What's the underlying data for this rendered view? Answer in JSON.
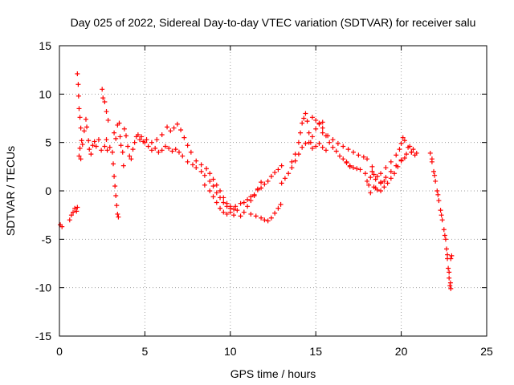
{
  "chart_data": {
    "type": "scatter",
    "title": "Day 025 of 2022, Sidereal Day-to-day VTEC variation (SDTVAR) for receiver salu",
    "xlabel": "GPS time / hours",
    "ylabel": "SDTVAR / TECUs",
    "xlim": [
      0,
      25
    ],
    "ylim": [
      -15,
      15
    ],
    "xticks": [
      0,
      5,
      10,
      15,
      20,
      25
    ],
    "yticks": [
      -15,
      -10,
      -5,
      0,
      5,
      10,
      15
    ],
    "grid": true,
    "legend": "none",
    "marker": "+",
    "series": [
      {
        "name": "SDTVAR",
        "color": "#ff0000",
        "points": [
          [
            0.05,
            -3.5
          ],
          [
            0.15,
            -3.7
          ],
          [
            0.6,
            -3.0
          ],
          [
            0.7,
            -2.5
          ],
          [
            0.8,
            -2.2
          ],
          [
            0.9,
            -1.8
          ],
          [
            1.0,
            -2.1
          ],
          [
            1.05,
            -1.7
          ],
          [
            1.05,
            12.1
          ],
          [
            1.1,
            11.0
          ],
          [
            1.12,
            9.8
          ],
          [
            1.15,
            8.5
          ],
          [
            1.2,
            7.6
          ],
          [
            1.25,
            6.5
          ],
          [
            1.3,
            5.2
          ],
          [
            1.2,
            4.4
          ],
          [
            1.15,
            3.6
          ],
          [
            1.25,
            3.3
          ],
          [
            1.35,
            4.8
          ],
          [
            1.45,
            6.2
          ],
          [
            1.55,
            7.4
          ],
          [
            1.6,
            6.6
          ],
          [
            1.7,
            5.2
          ],
          [
            1.75,
            4.3
          ],
          [
            1.85,
            3.8
          ],
          [
            1.95,
            4.7
          ],
          [
            2.05,
            5.1
          ],
          [
            2.15,
            4.6
          ],
          [
            2.3,
            5.3
          ],
          [
            2.45,
            4.2
          ],
          [
            2.5,
            10.5
          ],
          [
            2.55,
            9.6
          ],
          [
            2.65,
            9.2
          ],
          [
            2.75,
            8.2
          ],
          [
            2.85,
            7.3
          ],
          [
            2.75,
            5.3
          ],
          [
            2.65,
            4.6
          ],
          [
            2.8,
            4.2
          ],
          [
            2.95,
            4.5
          ],
          [
            3.1,
            4.0
          ],
          [
            3.15,
            2.8
          ],
          [
            3.2,
            1.5
          ],
          [
            3.25,
            0.5
          ],
          [
            3.3,
            -0.5
          ],
          [
            3.35,
            -1.5
          ],
          [
            3.4,
            -2.4
          ],
          [
            3.45,
            -2.7
          ],
          [
            3.2,
            6.0
          ],
          [
            3.3,
            5.4
          ],
          [
            3.4,
            6.8
          ],
          [
            3.5,
            7.0
          ],
          [
            3.55,
            5.6
          ],
          [
            3.6,
            4.7
          ],
          [
            3.7,
            4.0
          ],
          [
            3.75,
            2.6
          ],
          [
            3.8,
            6.4
          ],
          [
            3.9,
            5.7
          ],
          [
            4.0,
            4.6
          ],
          [
            4.1,
            3.6
          ],
          [
            4.2,
            3.3
          ],
          [
            4.3,
            4.3
          ],
          [
            4.4,
            5.0
          ],
          [
            4.5,
            5.6
          ],
          [
            4.6,
            5.8
          ],
          [
            4.7,
            5.3
          ],
          [
            4.8,
            5.6
          ],
          [
            4.9,
            5.1
          ],
          [
            5.0,
            5.0
          ],
          [
            5.2,
            4.6
          ],
          [
            5.4,
            4.2
          ],
          [
            5.6,
            4.4
          ],
          [
            5.8,
            4.0
          ],
          [
            6.0,
            4.2
          ],
          [
            6.2,
            4.6
          ],
          [
            6.4,
            4.4
          ],
          [
            6.6,
            4.1
          ],
          [
            6.8,
            4.3
          ],
          [
            7.0,
            4.0
          ],
          [
            7.2,
            3.6
          ],
          [
            5.1,
            5.3
          ],
          [
            5.4,
            5.0
          ],
          [
            5.7,
            5.3
          ],
          [
            6.0,
            5.8
          ],
          [
            6.3,
            6.6
          ],
          [
            6.5,
            6.2
          ],
          [
            6.7,
            6.5
          ],
          [
            6.9,
            6.9
          ],
          [
            7.1,
            6.3
          ],
          [
            7.3,
            5.5
          ],
          [
            7.5,
            4.7
          ],
          [
            7.7,
            4.0
          ],
          [
            7.5,
            3.0
          ],
          [
            7.8,
            2.7
          ],
          [
            8.0,
            2.4
          ],
          [
            8.3,
            2.0
          ],
          [
            8.5,
            1.6
          ],
          [
            8.8,
            1.0
          ],
          [
            9.0,
            0.5
          ],
          [
            9.2,
            -0.2
          ],
          [
            9.4,
            -0.7
          ],
          [
            9.6,
            -1.2
          ],
          [
            9.8,
            -1.6
          ],
          [
            10.0,
            -1.8
          ],
          [
            8.0,
            3.1
          ],
          [
            8.3,
            2.7
          ],
          [
            8.6,
            2.3
          ],
          [
            8.8,
            1.8
          ],
          [
            9.0,
            1.2
          ],
          [
            9.2,
            0.6
          ],
          [
            9.4,
            0.0
          ],
          [
            9.6,
            -0.7
          ],
          [
            9.8,
            -1.3
          ],
          [
            10.0,
            -1.6
          ],
          [
            10.2,
            -1.9
          ],
          [
            10.4,
            -2.0
          ],
          [
            8.5,
            0.6
          ],
          [
            8.8,
            0.0
          ],
          [
            9.0,
            -0.6
          ],
          [
            9.2,
            -1.2
          ],
          [
            9.4,
            -1.8
          ],
          [
            9.6,
            -2.2
          ],
          [
            9.8,
            -2.4
          ],
          [
            10.0,
            -2.2
          ],
          [
            10.2,
            -2.5
          ],
          [
            10.3,
            -1.6
          ],
          [
            10.6,
            -1.3
          ],
          [
            10.8,
            -1.2
          ],
          [
            11.0,
            -0.9
          ],
          [
            11.2,
            -0.6
          ],
          [
            11.4,
            -0.5
          ],
          [
            11.6,
            0.1
          ],
          [
            11.8,
            0.3
          ],
          [
            12.0,
            0.7
          ],
          [
            12.2,
            1.0
          ],
          [
            12.4,
            1.5
          ],
          [
            12.6,
            1.9
          ],
          [
            12.8,
            2.2
          ],
          [
            13.0,
            2.6
          ],
          [
            10.6,
            -2.6
          ],
          [
            10.8,
            -2.2
          ],
          [
            11.0,
            -1.6
          ],
          [
            11.2,
            -1.0
          ],
          [
            11.4,
            -0.4
          ],
          [
            11.6,
            0.2
          ],
          [
            11.8,
            0.9
          ],
          [
            11.2,
            -2.4
          ],
          [
            11.5,
            -2.6
          ],
          [
            11.8,
            -2.8
          ],
          [
            12.0,
            -3.0
          ],
          [
            12.2,
            -3.1
          ],
          [
            12.4,
            -2.8
          ],
          [
            12.6,
            -2.3
          ],
          [
            12.8,
            -1.8
          ],
          [
            12.95,
            -1.4
          ],
          [
            13.0,
            0.8
          ],
          [
            13.2,
            1.3
          ],
          [
            13.4,
            1.8
          ],
          [
            13.6,
            2.4
          ],
          [
            13.8,
            3.1
          ],
          [
            14.0,
            3.8
          ],
          [
            14.2,
            4.5
          ],
          [
            14.4,
            4.9
          ],
          [
            14.6,
            5.0
          ],
          [
            14.8,
            5.6
          ],
          [
            15.0,
            6.4
          ],
          [
            15.2,
            6.9
          ],
          [
            15.4,
            7.1
          ],
          [
            13.6,
            3.0
          ],
          [
            13.8,
            3.8
          ],
          [
            14.0,
            5.0
          ],
          [
            14.1,
            6.0
          ],
          [
            14.2,
            7.0
          ],
          [
            14.3,
            7.5
          ],
          [
            14.4,
            8.0
          ],
          [
            14.5,
            7.2
          ],
          [
            14.6,
            6.0
          ],
          [
            14.7,
            5.0
          ],
          [
            14.8,
            4.4
          ],
          [
            15.0,
            4.6
          ],
          [
            15.2,
            4.9
          ],
          [
            15.4,
            4.5
          ],
          [
            15.6,
            4.2
          ],
          [
            14.8,
            7.6
          ],
          [
            15.0,
            7.3
          ],
          [
            15.2,
            7.0
          ],
          [
            15.4,
            6.5
          ],
          [
            15.6,
            5.7
          ],
          [
            15.8,
            5.0
          ],
          [
            16.0,
            4.5
          ],
          [
            16.2,
            4.1
          ],
          [
            16.4,
            3.6
          ],
          [
            16.6,
            3.3
          ],
          [
            16.8,
            3.0
          ],
          [
            17.0,
            2.6
          ],
          [
            15.4,
            6.0
          ],
          [
            15.7,
            5.7
          ],
          [
            16.0,
            5.3
          ],
          [
            16.3,
            4.9
          ],
          [
            16.6,
            4.6
          ],
          [
            16.9,
            4.3
          ],
          [
            17.2,
            4.0
          ],
          [
            17.5,
            3.7
          ],
          [
            17.8,
            3.5
          ],
          [
            18.0,
            3.3
          ],
          [
            18.3,
            2.5
          ],
          [
            16.8,
            2.9
          ],
          [
            17.0,
            2.5
          ],
          [
            17.2,
            2.4
          ],
          [
            17.4,
            2.3
          ],
          [
            17.6,
            2.2
          ],
          [
            17.9,
            1.8
          ],
          [
            18.0,
            1.0
          ],
          [
            18.1,
            0.6
          ],
          [
            18.2,
            1.4
          ],
          [
            18.3,
            2.0
          ],
          [
            18.4,
            1.7
          ],
          [
            18.5,
            1.2
          ],
          [
            18.6,
            1.5
          ],
          [
            18.8,
            0.8
          ],
          [
            19.0,
            1.0
          ],
          [
            18.4,
            0.4
          ],
          [
            18.6,
            0.1
          ],
          [
            18.8,
            0.0
          ],
          [
            19.0,
            0.4
          ],
          [
            19.2,
            0.8
          ],
          [
            19.4,
            1.3
          ],
          [
            19.6,
            1.8
          ],
          [
            19.8,
            2.5
          ],
          [
            20.0,
            3.1
          ],
          [
            20.2,
            3.4
          ],
          [
            18.2,
            -0.2
          ],
          [
            18.5,
            0.3
          ],
          [
            18.8,
            0.9
          ],
          [
            19.1,
            1.4
          ],
          [
            19.4,
            2.0
          ],
          [
            19.7,
            2.6
          ],
          [
            20.0,
            3.2
          ],
          [
            20.3,
            3.8
          ],
          [
            20.6,
            4.0
          ],
          [
            18.8,
            1.8
          ],
          [
            19.1,
            2.4
          ],
          [
            19.4,
            3.0
          ],
          [
            19.7,
            3.7
          ],
          [
            19.9,
            4.3
          ],
          [
            20.0,
            4.9
          ],
          [
            20.1,
            5.5
          ],
          [
            20.2,
            5.2
          ],
          [
            20.4,
            4.5
          ],
          [
            20.6,
            4.0
          ],
          [
            20.8,
            3.7
          ],
          [
            20.5,
            4.6
          ],
          [
            20.7,
            4.3
          ],
          [
            20.9,
            3.9
          ],
          [
            21.7,
            3.9
          ],
          [
            21.8,
            3.0
          ],
          [
            21.9,
            2.0
          ],
          [
            22.0,
            1.0
          ],
          [
            22.1,
            0.0
          ],
          [
            22.2,
            -1.0
          ],
          [
            22.3,
            -2.0
          ],
          [
            22.4,
            -3.0
          ],
          [
            22.5,
            -4.0
          ],
          [
            22.6,
            -5.0
          ],
          [
            22.65,
            -6.0
          ],
          [
            22.7,
            -7.0
          ],
          [
            22.75,
            -8.0
          ],
          [
            22.8,
            -9.0
          ],
          [
            22.85,
            -9.8
          ],
          [
            22.9,
            -10.1
          ],
          [
            22.9,
            -7.0
          ],
          [
            22.95,
            -6.7
          ],
          [
            21.8,
            3.3
          ],
          [
            21.95,
            1.6
          ],
          [
            22.15,
            -0.4
          ],
          [
            22.35,
            -2.5
          ],
          [
            22.55,
            -4.6
          ],
          [
            22.7,
            -6.6
          ],
          [
            22.8,
            -8.4
          ],
          [
            22.88,
            -9.5
          ]
        ]
      }
    ]
  }
}
